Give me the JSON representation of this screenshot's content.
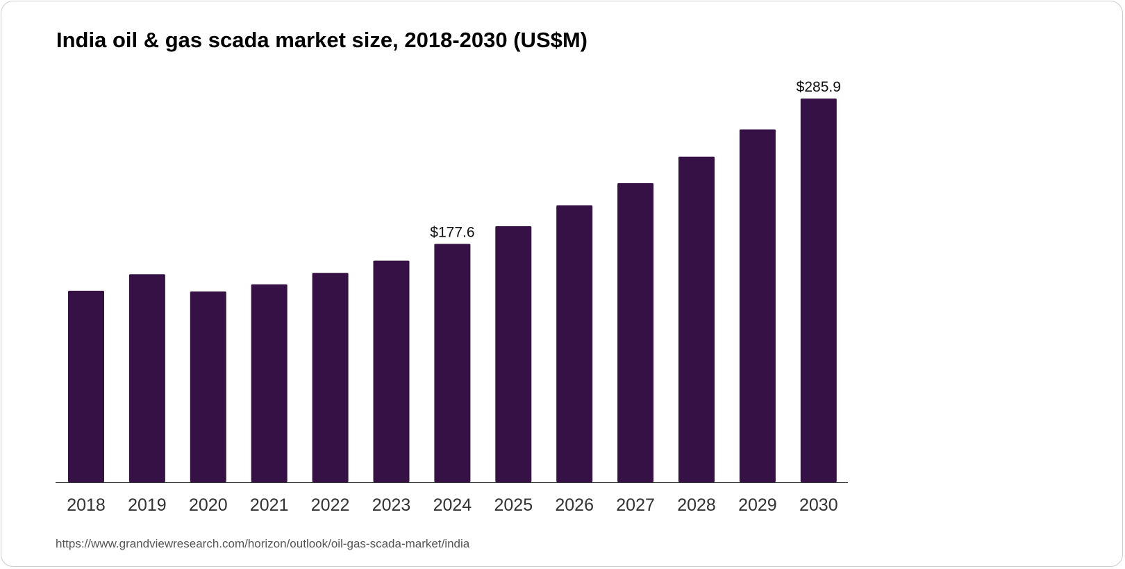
{
  "chart_data": {
    "type": "bar",
    "title": "India oil & gas scada market size, 2018-2030 (US$M)",
    "categories": [
      "2018",
      "2019",
      "2020",
      "2021",
      "2022",
      "2023",
      "2024",
      "2025",
      "2026",
      "2027",
      "2028",
      "2029",
      "2030"
    ],
    "values": [
      142.7,
      155.0,
      142.1,
      147.5,
      156.0,
      165.1,
      177.6,
      190.8,
      206.3,
      222.8,
      242.6,
      262.9,
      285.9
    ],
    "data_labels": [
      {
        "index": 6,
        "text": "$177.6"
      },
      {
        "index": 12,
        "text": "$285.9"
      }
    ],
    "xlabel": "",
    "ylabel": "",
    "ylim": [
      0,
      285.9
    ],
    "bar_color": "#361146",
    "grid": false
  },
  "source": "https://www.grandviewresearch.com/horizon/outlook/oil-gas-scada-market/india"
}
